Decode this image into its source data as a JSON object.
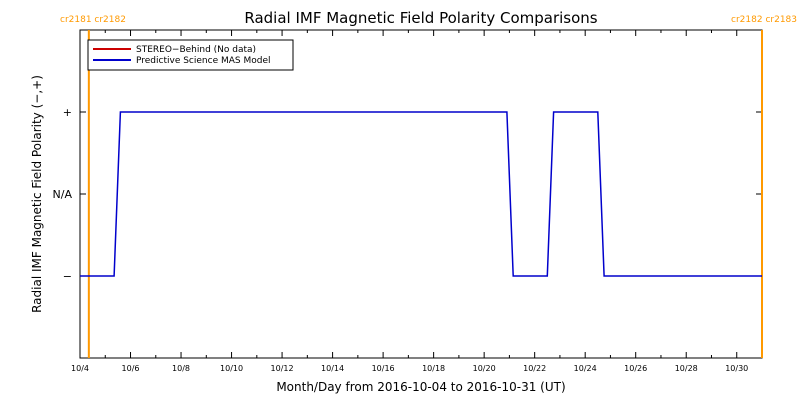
{
  "chart_data": {
    "type": "line",
    "title": "Radial IMF Magnetic Field Polarity Comparisons",
    "xlabel": "Month/Day from 2016-10-04 to 2016-10-31 (UT)",
    "ylabel": "Radial IMF Magnetic Field Polarity (−,+)",
    "x_range_days": [
      0,
      27
    ],
    "y_range": [
      -2,
      2
    ],
    "x_ticks": [
      {
        "day": 0,
        "label": "10/4"
      },
      {
        "day": 2,
        "label": "10/6"
      },
      {
        "day": 4,
        "label": "10/8"
      },
      {
        "day": 6,
        "label": "10/10"
      },
      {
        "day": 8,
        "label": "10/12"
      },
      {
        "day": 10,
        "label": "10/14"
      },
      {
        "day": 12,
        "label": "10/16"
      },
      {
        "day": 14,
        "label": "10/18"
      },
      {
        "day": 16,
        "label": "10/20"
      },
      {
        "day": 18,
        "label": "10/22"
      },
      {
        "day": 20,
        "label": "10/24"
      },
      {
        "day": 22,
        "label": "10/26"
      },
      {
        "day": 24,
        "label": "10/28"
      },
      {
        "day": 26,
        "label": "10/30"
      }
    ],
    "y_ticks": [
      {
        "value": 1,
        "label": "+"
      },
      {
        "value": 0,
        "label": "N/A"
      },
      {
        "value": -1,
        "label": "−"
      }
    ],
    "series": [
      {
        "name": "STEREO−Behind (No data)",
        "color": "#cc0000",
        "points": []
      },
      {
        "name": "Predictive Science MAS Model",
        "color": "#0000cc",
        "points": [
          [
            0.0,
            -1
          ],
          [
            1.35,
            -1
          ],
          [
            1.6,
            1
          ],
          [
            16.9,
            1
          ],
          [
            17.15,
            -1
          ],
          [
            18.5,
            -1
          ],
          [
            18.75,
            1
          ],
          [
            20.5,
            1
          ],
          [
            20.75,
            -1
          ],
          [
            27.0,
            -1
          ]
        ]
      }
    ],
    "carrington_markers": [
      {
        "day": 0.35,
        "label": "cr2181 cr2182",
        "side": "left"
      },
      {
        "day": 27.0,
        "label": "cr2182 cr2183",
        "side": "right"
      }
    ],
    "marker_color": "#ff9900",
    "legend_position": "top-left",
    "grid": false
  }
}
